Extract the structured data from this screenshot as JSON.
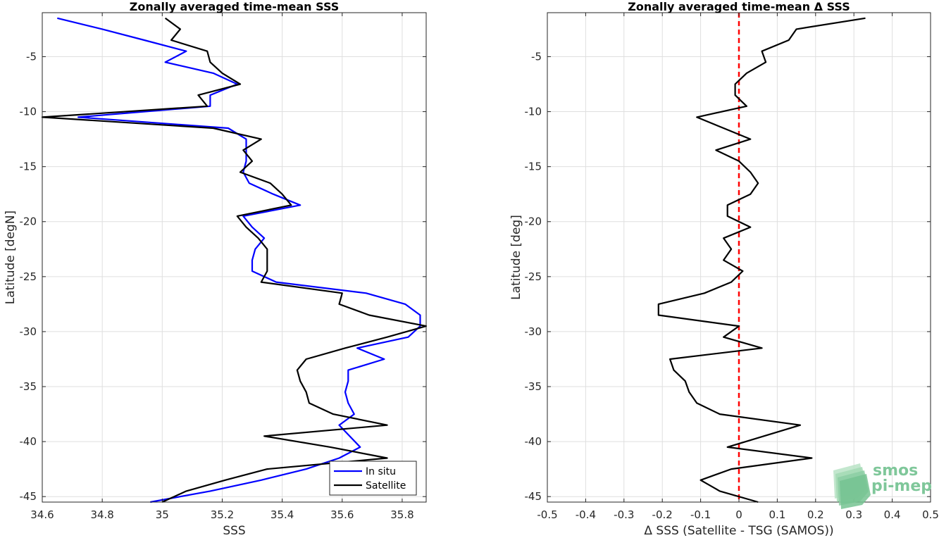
{
  "chart_data": [
    {
      "type": "line",
      "title": "Zonally averaged time-mean SSS",
      "xlabel": "SSS",
      "ylabel": "Latitude [degN]",
      "xlim": [
        34.6,
        35.88
      ],
      "ylim": [
        -45.5,
        -1
      ],
      "xticks": [
        34.6,
        34.8,
        35,
        35.2,
        35.4,
        35.6,
        35.8
      ],
      "yticks": [
        -5,
        -10,
        -15,
        -20,
        -25,
        -30,
        -35,
        -40,
        -45
      ],
      "xtick_labels": [
        "34.6",
        "34.8",
        "35",
        "35.2",
        "35.4",
        "35.6",
        "35.8"
      ],
      "ytick_labels": [
        "-5",
        "-10",
        "-15",
        "-20",
        "-25",
        "-30",
        "-35",
        "-40",
        "-45"
      ],
      "grid": true,
      "legend_position": "bottom-right",
      "series": [
        {
          "name": "In situ",
          "color": "#0000ff",
          "points": [
            [
              34.65,
              -1.5
            ],
            [
              34.8,
              -2.5
            ],
            [
              34.94,
              -3.5
            ],
            [
              35.08,
              -4.5
            ],
            [
              35.01,
              -5.5
            ],
            [
              35.17,
              -6.5
            ],
            [
              35.25,
              -7.5
            ],
            [
              35.16,
              -8.5
            ],
            [
              35.16,
              -9.5
            ],
            [
              34.72,
              -10.5
            ],
            [
              35.22,
              -11.5
            ],
            [
              35.28,
              -12.5
            ],
            [
              35.28,
              -13.5
            ],
            [
              35.28,
              -14.5
            ],
            [
              35.27,
              -15.5
            ],
            [
              35.29,
              -16.5
            ],
            [
              35.37,
              -17.5
            ],
            [
              35.46,
              -18.5
            ],
            [
              35.27,
              -19.5
            ],
            [
              35.3,
              -20.5
            ],
            [
              35.34,
              -21.5
            ],
            [
              35.31,
              -22.5
            ],
            [
              35.3,
              -23.5
            ],
            [
              35.3,
              -24.5
            ],
            [
              35.38,
              -25.5
            ],
            [
              35.68,
              -26.5
            ],
            [
              35.81,
              -27.5
            ],
            [
              35.86,
              -28.5
            ],
            [
              35.86,
              -29.5
            ],
            [
              35.82,
              -30.5
            ],
            [
              35.65,
              -31.5
            ],
            [
              35.74,
              -32.5
            ],
            [
              35.62,
              -33.5
            ],
            [
              35.62,
              -34.5
            ],
            [
              35.61,
              -35.5
            ],
            [
              35.62,
              -36.5
            ],
            [
              35.64,
              -37.5
            ],
            [
              35.59,
              -38.5
            ],
            [
              35.66,
              -40.5
            ],
            [
              35.59,
              -41.5
            ],
            [
              35.48,
              -42.5
            ],
            [
              35.33,
              -43.5
            ],
            [
              35.16,
              -44.5
            ],
            [
              34.96,
              -45.5
            ]
          ]
        },
        {
          "name": "Satellite",
          "color": "#000000",
          "points": [
            [
              35.01,
              -1.5
            ],
            [
              35.06,
              -2.5
            ],
            [
              35.03,
              -3.5
            ],
            [
              35.15,
              -4.5
            ],
            [
              35.16,
              -5.5
            ],
            [
              35.2,
              -6.5
            ],
            [
              35.26,
              -7.5
            ],
            [
              35.12,
              -8.5
            ],
            [
              35.15,
              -9.5
            ],
            [
              34.6,
              -10.5
            ],
            [
              35.17,
              -11.5
            ],
            [
              35.33,
              -12.5
            ],
            [
              35.27,
              -13.5
            ],
            [
              35.3,
              -14.5
            ],
            [
              35.26,
              -15.5
            ],
            [
              35.36,
              -16.5
            ],
            [
              35.4,
              -17.5
            ],
            [
              35.43,
              -18.5
            ],
            [
              35.25,
              -19.5
            ],
            [
              35.28,
              -20.5
            ],
            [
              35.32,
              -21.5
            ],
            [
              35.35,
              -22.5
            ],
            [
              35.35,
              -23.5
            ],
            [
              35.35,
              -24.5
            ],
            [
              35.33,
              -25.5
            ],
            [
              35.6,
              -26.5
            ],
            [
              35.59,
              -27.5
            ],
            [
              35.69,
              -28.5
            ],
            [
              35.88,
              -29.5
            ],
            [
              35.75,
              -30.5
            ],
            [
              35.61,
              -31.5
            ],
            [
              35.48,
              -32.5
            ],
            [
              35.45,
              -33.5
            ],
            [
              35.46,
              -34.5
            ],
            [
              35.48,
              -35.5
            ],
            [
              35.49,
              -36.5
            ],
            [
              35.57,
              -37.5
            ],
            [
              35.75,
              -38.5
            ],
            [
              35.34,
              -39.5
            ],
            [
              35.56,
              -40.5
            ],
            [
              35.75,
              -41.5
            ],
            [
              35.35,
              -42.5
            ],
            [
              35.21,
              -43.5
            ],
            [
              35.08,
              -44.5
            ],
            [
              35.0,
              -45.5
            ]
          ]
        }
      ]
    },
    {
      "type": "line",
      "title": "Zonally averaged time-mean Δ SSS",
      "xlabel": "Δ SSS (Satellite - TSG (SAMOS))",
      "ylabel": "Latitude [deg]",
      "xlim": [
        -0.5,
        0.5
      ],
      "ylim": [
        -45.5,
        -1
      ],
      "xticks": [
        -0.5,
        -0.4,
        -0.3,
        -0.2,
        -0.1,
        0,
        0.1,
        0.2,
        0.3,
        0.4,
        0.5
      ],
      "yticks": [
        -5,
        -10,
        -15,
        -20,
        -25,
        -30,
        -35,
        -40,
        -45
      ],
      "xtick_labels": [
        "-0.5",
        "-0.4",
        "-0.3",
        "-0.2",
        "-0.1",
        "0",
        "0.1",
        "0.2",
        "0.3",
        "0.4",
        "0.5"
      ],
      "ytick_labels": [
        "-5",
        "-10",
        "-15",
        "-20",
        "-25",
        "-30",
        "-35",
        "-40",
        "-45"
      ],
      "grid": true,
      "reference_line": {
        "x": 0,
        "color": "#ff0000",
        "style": "dashed"
      },
      "series": [
        {
          "color": "#000000",
          "points": [
            [
              0.33,
              -1.5
            ],
            [
              0.15,
              -2.5
            ],
            [
              0.13,
              -3.5
            ],
            [
              0.06,
              -4.5
            ],
            [
              0.07,
              -5.5
            ],
            [
              0.02,
              -6.5
            ],
            [
              -0.01,
              -7.5
            ],
            [
              -0.01,
              -8.5
            ],
            [
              0.02,
              -9.5
            ],
            [
              -0.11,
              -10.5
            ],
            [
              -0.04,
              -11.5
            ],
            [
              0.03,
              -12.5
            ],
            [
              -0.06,
              -13.5
            ],
            [
              0.0,
              -14.5
            ],
            [
              0.03,
              -15.5
            ],
            [
              0.05,
              -16.5
            ],
            [
              0.03,
              -17.5
            ],
            [
              -0.03,
              -18.5
            ],
            [
              -0.03,
              -19.5
            ],
            [
              0.03,
              -20.5
            ],
            [
              -0.04,
              -21.5
            ],
            [
              -0.02,
              -22.5
            ],
            [
              -0.04,
              -23.5
            ],
            [
              0.01,
              -24.5
            ],
            [
              -0.02,
              -25.5
            ],
            [
              -0.09,
              -26.5
            ],
            [
              -0.21,
              -27.5
            ],
            [
              -0.21,
              -28.5
            ],
            [
              0.0,
              -29.5
            ],
            [
              -0.04,
              -30.5
            ],
            [
              0.06,
              -31.5
            ],
            [
              -0.18,
              -32.5
            ],
            [
              -0.17,
              -33.5
            ],
            [
              -0.14,
              -34.5
            ],
            [
              -0.13,
              -35.5
            ],
            [
              -0.11,
              -36.5
            ],
            [
              -0.05,
              -37.5
            ],
            [
              0.16,
              -38.5
            ],
            [
              -0.03,
              -40.5
            ],
            [
              0.19,
              -41.5
            ],
            [
              -0.02,
              -42.5
            ],
            [
              -0.1,
              -43.5
            ],
            [
              -0.05,
              -44.5
            ],
            [
              0.05,
              -45.5
            ]
          ]
        }
      ]
    }
  ],
  "logo": {
    "line1": "smos",
    "line2": "pi-mep"
  }
}
